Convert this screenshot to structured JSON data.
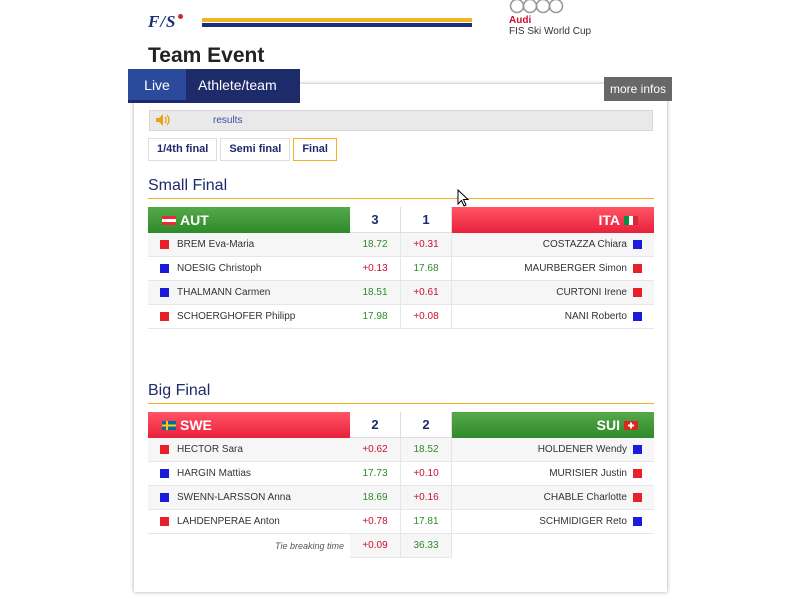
{
  "brand": {
    "fis_logo": "F/S",
    "audi_name": "Audi",
    "audi_sub": "FIS Ski World Cup",
    "accent_yellow": "#f0b323",
    "accent_blue": "#1e2b6b"
  },
  "page": {
    "title": "Team Event"
  },
  "tabs": [
    {
      "label": "Live",
      "active": true
    },
    {
      "label": "Athlete/team",
      "active": false
    }
  ],
  "more_infos": "more infos",
  "results_bar": {
    "icon": "speaker-icon",
    "label": "results"
  },
  "rounds": [
    {
      "label": "1/4th final",
      "active": false
    },
    {
      "label": "Semi final",
      "active": false
    },
    {
      "label": "Final",
      "active": true
    }
  ],
  "small_final": {
    "title": "Small Final",
    "left_team": {
      "code": "AUT",
      "color": "green",
      "score": "3"
    },
    "right_team": {
      "code": "ITA",
      "color": "red",
      "score": "1"
    },
    "rows": [
      {
        "left_name": "BREM Eva-Maria",
        "left_sq": "red",
        "left_val": "18.72",
        "left_type": "pos",
        "right_val": "+0.31",
        "right_type": "neg",
        "right_name": "COSTAZZA Chiara",
        "right_sq": "blue"
      },
      {
        "left_name": "NOESIG Christoph",
        "left_sq": "blue",
        "left_val": "+0.13",
        "left_type": "neg",
        "right_val": "17.68",
        "right_type": "pos",
        "right_name": "MAURBERGER Simon",
        "right_sq": "red"
      },
      {
        "left_name": "THALMANN Carmen",
        "left_sq": "blue",
        "left_val": "18.51",
        "left_type": "pos",
        "right_val": "+0.61",
        "right_type": "neg",
        "right_name": "CURTONI Irene",
        "right_sq": "red"
      },
      {
        "left_name": "SCHOERGHOFER Philipp",
        "left_sq": "red",
        "left_val": "17.98",
        "left_type": "pos",
        "right_val": "+0.08",
        "right_type": "neg",
        "right_name": "NANI Roberto",
        "right_sq": "blue"
      }
    ]
  },
  "big_final": {
    "title": "Big Final",
    "left_team": {
      "code": "SWE",
      "color": "red",
      "score": "2"
    },
    "right_team": {
      "code": "SUI",
      "color": "green",
      "score": "2"
    },
    "rows": [
      {
        "left_name": "HECTOR Sara",
        "left_sq": "red",
        "left_val": "+0.62",
        "left_type": "neg",
        "right_val": "18.52",
        "right_type": "pos",
        "right_name": "HOLDENER Wendy",
        "right_sq": "blue"
      },
      {
        "left_name": "HARGIN Mattias",
        "left_sq": "blue",
        "left_val": "17.73",
        "left_type": "pos",
        "right_val": "+0.10",
        "right_type": "neg",
        "right_name": "MURISIER Justin",
        "right_sq": "red"
      },
      {
        "left_name": "SWENN-LARSSON Anna",
        "left_sq": "blue",
        "left_val": "18.69",
        "left_type": "pos",
        "right_val": "+0.16",
        "right_type": "neg",
        "right_name": "CHABLE Charlotte",
        "right_sq": "red"
      },
      {
        "left_name": "LAHDENPERAE Anton",
        "left_sq": "red",
        "left_val": "+0.78",
        "left_type": "neg",
        "right_val": "17.81",
        "right_type": "pos",
        "right_name": "SCHMIDIGER Reto",
        "right_sq": "blue"
      }
    ],
    "tie_break": {
      "label": "Tie breaking time",
      "left_val": "+0.09",
      "left_type": "neg",
      "right_val": "36.33",
      "right_type": "pos"
    }
  }
}
